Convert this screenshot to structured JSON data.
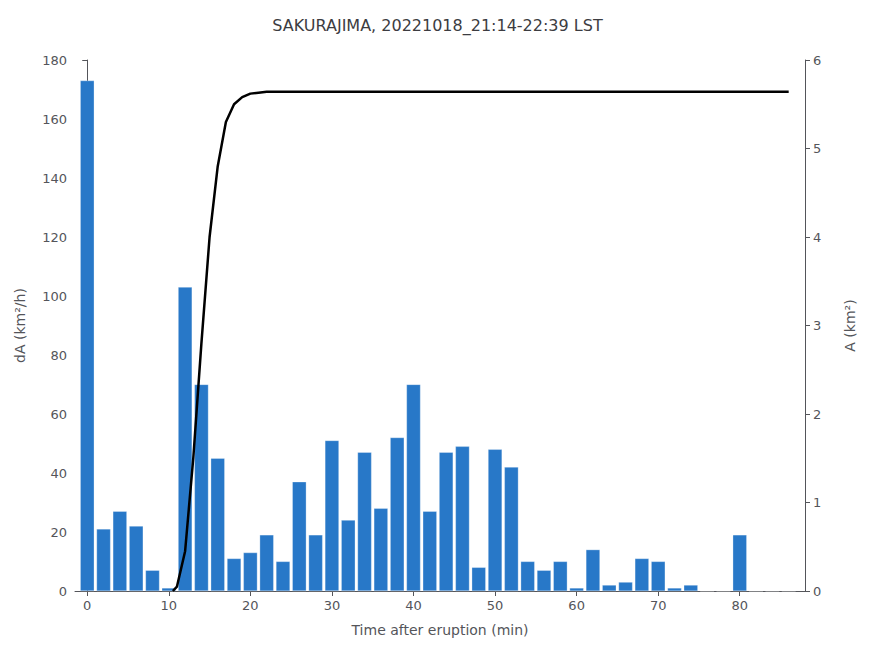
{
  "chart_data": {
    "type": "bar",
    "title": "SAKURAJIMA, 20221018_21:14-22:39 LST",
    "xlabel": "Time after eruption (min)",
    "ylabel": "dA (km²/h)",
    "y2label": "A (km²)",
    "xlim": [
      -1.5,
      88
    ],
    "xticks": [
      0,
      10,
      20,
      30,
      40,
      50,
      60,
      70,
      80
    ],
    "ylim": [
      0,
      180
    ],
    "yticks": [
      0,
      20,
      40,
      60,
      80,
      100,
      120,
      140,
      160,
      180
    ],
    "y2lim": [
      0,
      6
    ],
    "y2ticks": [
      0,
      1,
      2,
      3,
      4,
      5,
      6
    ],
    "grid": false,
    "series": [
      {
        "type": "bar",
        "color": "#2878c8",
        "x": [
          0,
          2,
          4,
          6,
          8,
          10,
          12,
          14,
          16,
          18,
          20,
          22,
          24,
          26,
          28,
          30,
          32,
          34,
          36,
          38,
          40,
          42,
          44,
          46,
          48,
          50,
          52,
          54,
          56,
          58,
          60,
          62,
          64,
          66,
          68,
          70,
          72,
          74,
          76,
          78,
          80,
          82,
          84,
          86
        ],
        "values": [
          173,
          21,
          27,
          22,
          7,
          1,
          103,
          70,
          45,
          11,
          13,
          19,
          10,
          37,
          19,
          51,
          24,
          47,
          28,
          52,
          70,
          27,
          47,
          49,
          8,
          48,
          42,
          10,
          7,
          10,
          1,
          14,
          2,
          3,
          11,
          10,
          1,
          2,
          0,
          0,
          19,
          0,
          0,
          0
        ]
      },
      {
        "type": "line",
        "color": "#000000",
        "axis": "y2",
        "x": [
          10.5,
          11.0,
          12.0,
          13.0,
          14.0,
          15.0,
          16.0,
          17.0,
          18.0,
          19.0,
          20.0,
          21.0,
          22.0,
          86
        ],
        "values": [
          0.0,
          0.05,
          0.45,
          1.5,
          2.8,
          4.0,
          4.8,
          5.3,
          5.5,
          5.58,
          5.62,
          5.63,
          5.64,
          5.64
        ]
      }
    ]
  }
}
